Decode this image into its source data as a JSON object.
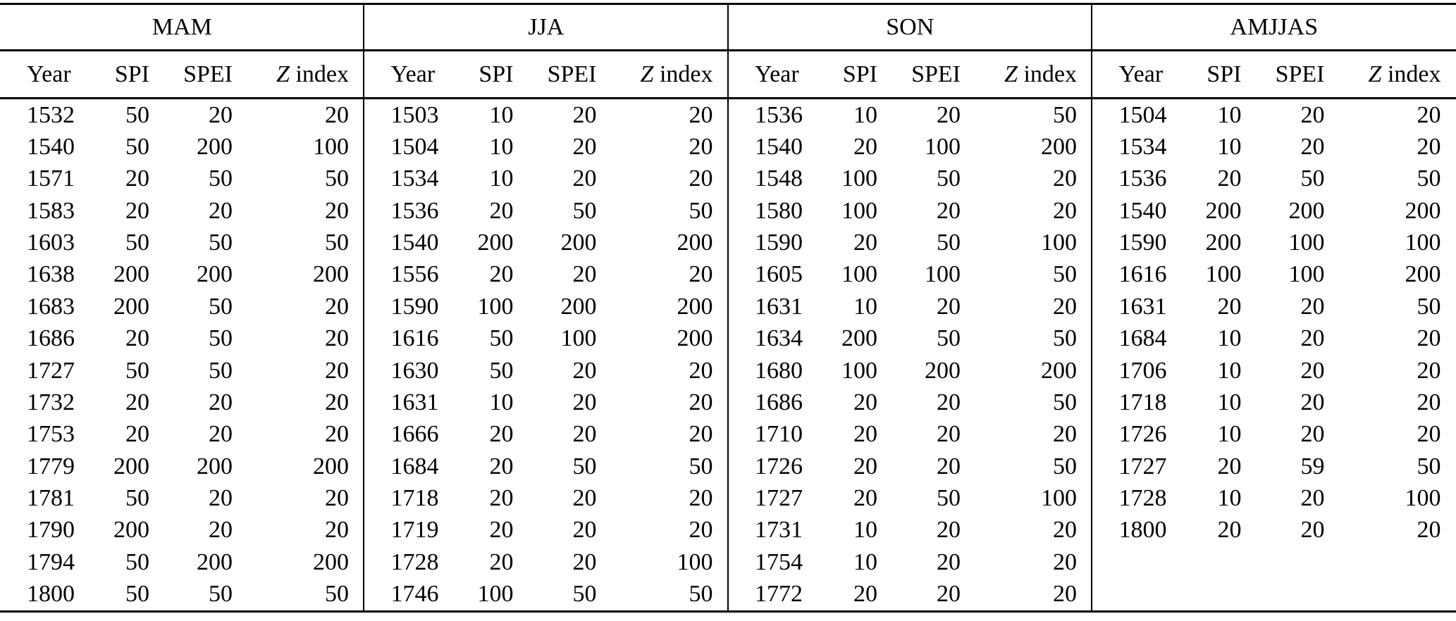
{
  "table": {
    "column_headers": [
      {
        "label": "Year"
      },
      {
        "label": "SPI"
      },
      {
        "label": "SPEI"
      },
      {
        "label": "Z index",
        "italic_prefix": "Z",
        "rest": " index"
      }
    ],
    "groups": [
      {
        "title": "MAM",
        "rows": [
          [
            "1532",
            "50",
            "20",
            "20"
          ],
          [
            "1540",
            "50",
            "200",
            "100"
          ],
          [
            "1571",
            "20",
            "50",
            "50"
          ],
          [
            "1583",
            "20",
            "20",
            "20"
          ],
          [
            "1603",
            "50",
            "50",
            "50"
          ],
          [
            "1638",
            "200",
            "200",
            "200"
          ],
          [
            "1683",
            "200",
            "50",
            "20"
          ],
          [
            "1686",
            "20",
            "50",
            "20"
          ],
          [
            "1727",
            "50",
            "50",
            "20"
          ],
          [
            "1732",
            "20",
            "20",
            "20"
          ],
          [
            "1753",
            "20",
            "20",
            "20"
          ],
          [
            "1779",
            "200",
            "200",
            "200"
          ],
          [
            "1781",
            "50",
            "20",
            "20"
          ],
          [
            "1790",
            "200",
            "20",
            "20"
          ],
          [
            "1794",
            "50",
            "200",
            "200"
          ],
          [
            "1800",
            "50",
            "50",
            "50"
          ]
        ]
      },
      {
        "title": "JJA",
        "rows": [
          [
            "1503",
            "10",
            "20",
            "20"
          ],
          [
            "1504",
            "10",
            "20",
            "20"
          ],
          [
            "1534",
            "10",
            "20",
            "20"
          ],
          [
            "1536",
            "20",
            "50",
            "50"
          ],
          [
            "1540",
            "200",
            "200",
            "200"
          ],
          [
            "1556",
            "20",
            "20",
            "20"
          ],
          [
            "1590",
            "100",
            "200",
            "200"
          ],
          [
            "1616",
            "50",
            "100",
            "200"
          ],
          [
            "1630",
            "50",
            "20",
            "20"
          ],
          [
            "1631",
            "10",
            "20",
            "20"
          ],
          [
            "1666",
            "20",
            "20",
            "20"
          ],
          [
            "1684",
            "20",
            "50",
            "50"
          ],
          [
            "1718",
            "20",
            "20",
            "20"
          ],
          [
            "1719",
            "20",
            "20",
            "20"
          ],
          [
            "1728",
            "20",
            "20",
            "100"
          ],
          [
            "1746",
            "100",
            "50",
            "50"
          ]
        ]
      },
      {
        "title": "SON",
        "rows": [
          [
            "1536",
            "10",
            "20",
            "50"
          ],
          [
            "1540",
            "20",
            "100",
            "200"
          ],
          [
            "1548",
            "100",
            "50",
            "20"
          ],
          [
            "1580",
            "100",
            "20",
            "20"
          ],
          [
            "1590",
            "20",
            "50",
            "100"
          ],
          [
            "1605",
            "100",
            "100",
            "50"
          ],
          [
            "1631",
            "10",
            "20",
            "20"
          ],
          [
            "1634",
            "200",
            "50",
            "50"
          ],
          [
            "1680",
            "100",
            "200",
            "200"
          ],
          [
            "1686",
            "20",
            "20",
            "50"
          ],
          [
            "1710",
            "20",
            "20",
            "20"
          ],
          [
            "1726",
            "20",
            "20",
            "50"
          ],
          [
            "1727",
            "20",
            "50",
            "100"
          ],
          [
            "1731",
            "10",
            "20",
            "20"
          ],
          [
            "1754",
            "10",
            "20",
            "20"
          ],
          [
            "1772",
            "20",
            "20",
            "20"
          ]
        ]
      },
      {
        "title": "AMJJAS",
        "rows": [
          [
            "1504",
            "10",
            "20",
            "20"
          ],
          [
            "1534",
            "10",
            "20",
            "20"
          ],
          [
            "1536",
            "20",
            "50",
            "50"
          ],
          [
            "1540",
            "200",
            "200",
            "200"
          ],
          [
            "1590",
            "200",
            "100",
            "100"
          ],
          [
            "1616",
            "100",
            "100",
            "200"
          ],
          [
            "1631",
            "20",
            "20",
            "50"
          ],
          [
            "1684",
            "10",
            "20",
            "20"
          ],
          [
            "1706",
            "10",
            "20",
            "20"
          ],
          [
            "1718",
            "10",
            "20",
            "20"
          ],
          [
            "1726",
            "10",
            "20",
            "20"
          ],
          [
            "1727",
            "20",
            "59",
            "50"
          ],
          [
            "1728",
            "10",
            "20",
            "100"
          ],
          [
            "1800",
            "20",
            "20",
            "20"
          ]
        ]
      }
    ]
  }
}
